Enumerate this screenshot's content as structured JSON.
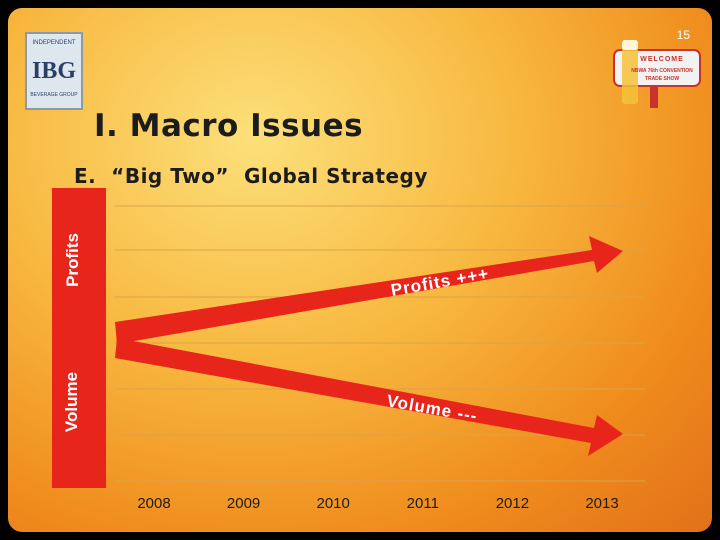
{
  "page": {
    "number": "15"
  },
  "logos": {
    "ibg": {
      "text": "IBG",
      "top": "INDEPENDENT",
      "bottom": "BEVERAGE GROUP"
    },
    "welcome": {
      "text": "WELCOME",
      "line2": "NBWA 76th CONVENTION",
      "line3": "TRADE SHOW"
    }
  },
  "slide": {
    "title": "I. Macro Issues",
    "subtitle": "E.  “Big Two”  Global Strategy"
  },
  "axis_labels": {
    "top": "Profits",
    "bottom": "Volume"
  },
  "colors": {
    "arrow": "#e8251b",
    "background": "#f4a634",
    "text": "#1c1c1c"
  },
  "chart_data": {
    "type": "line",
    "x": [
      "2008",
      "2009",
      "2010",
      "2011",
      "2012",
      "2013"
    ],
    "series": [
      {
        "name": "Profits +++",
        "trend": "up"
      },
      {
        "name": "Volume ---",
        "trend": "down"
      }
    ],
    "grid": true
  }
}
